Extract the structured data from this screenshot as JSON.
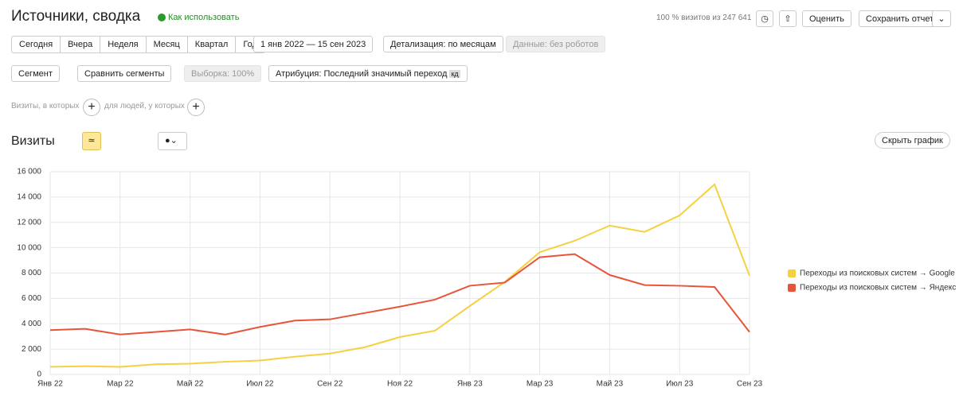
{
  "header": {
    "title": "Источники, сводка",
    "help": "Как использовать",
    "sample_info": "100 % визитов из 247 641",
    "rate": "Оценить",
    "save": "Сохранить отчет"
  },
  "toolbar": {
    "periods": [
      "Сегодня",
      "Вчера",
      "Неделя",
      "Месяц",
      "Квартал",
      "Год"
    ],
    "date_range": "1 янв 2022 — 15 сен 2023",
    "detail": "Детализация: по месяцам",
    "data_filter": "Данные: без роботов",
    "segment": "Сегмент",
    "compare": "Сравнить сегменты",
    "sampling": "Выборка: 100%",
    "attribution": "Атрибуция: Последний значимый переход",
    "attribution_badge": "кд",
    "filter_visits": "Визиты, в которых",
    "filter_people": "для людей, у которых",
    "hide_chart": "Скрыть график"
  },
  "chart_data": {
    "type": "line",
    "title": "Визиты",
    "categories": [
      "Янв 22",
      null,
      "Мар 22",
      null,
      "Май 22",
      null,
      "Июл 22",
      null,
      "Сен 22",
      null,
      "Ноя 22",
      null,
      "Янв 23",
      null,
      "Мар 23",
      null,
      "Май 23",
      null,
      "Июл 23",
      null,
      "Сен 23"
    ],
    "series": [
      {
        "name": "Переходы из поисковых систем → Google",
        "color": "#f5d03f",
        "values": [
          600,
          650,
          600,
          800,
          850,
          1000,
          1100,
          1400,
          1650,
          2150,
          2950,
          3450,
          5400,
          7300,
          9650,
          10550,
          11750,
          11250,
          12550,
          15000,
          7800
        ]
      },
      {
        "name": "Переходы из поисковых систем → Яндекс",
        "color": "#e8543a",
        "values": [
          3500,
          3600,
          3150,
          3350,
          3550,
          3150,
          3750,
          4250,
          4350,
          4850,
          5350,
          5900,
          7000,
          7250,
          9250,
          9500,
          7850,
          7050,
          7000,
          6900,
          3350
        ]
      }
    ],
    "ylim": [
      0,
      16000
    ],
    "yticks": [
      0,
      {
        "value": 2000,
        "label": "2 000"
      },
      {
        "value": 4000,
        "label": "4 000"
      },
      {
        "value": 6000,
        "label": "6 000"
      },
      {
        "value": 8000,
        "label": "8 000"
      },
      {
        "value": 10000,
        "label": "10 000"
      },
      {
        "value": 12000,
        "label": "12 000"
      },
      {
        "value": 14000,
        "label": "14 000"
      },
      {
        "value": 16000,
        "label": "16 000"
      }
    ],
    "grid": true
  }
}
